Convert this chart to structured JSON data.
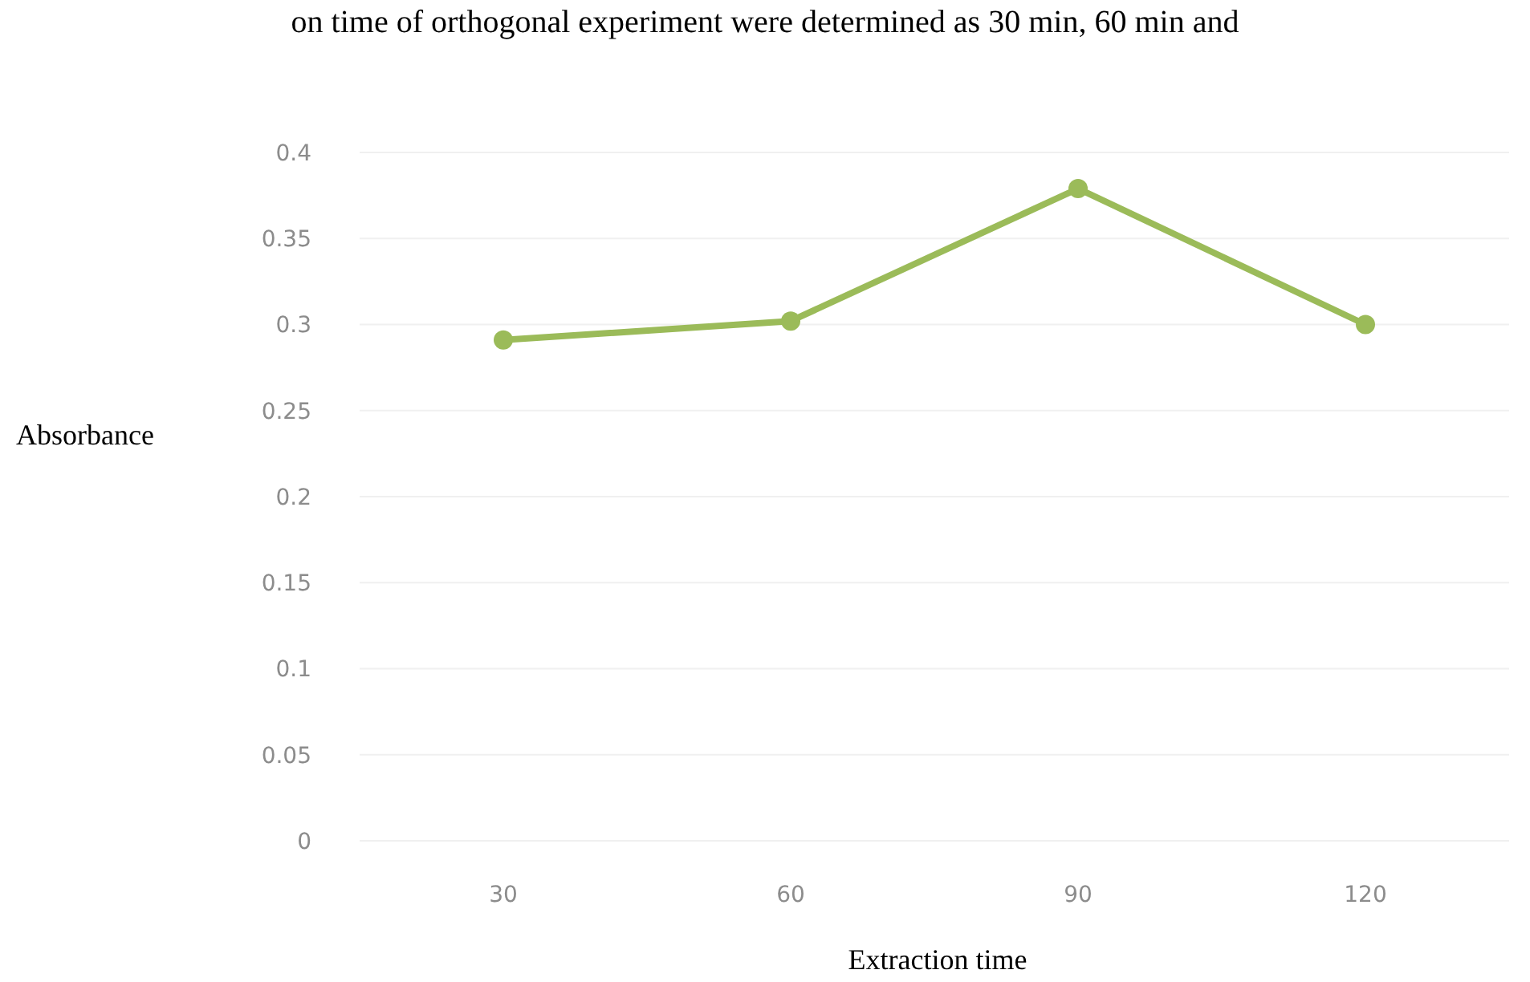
{
  "chart_data": {
    "type": "line",
    "xlabel": "Extraction time",
    "ylabel": "Absorbance",
    "annotations": [
      "on time of orthogonal experiment were determined as 30 min, 60 min and"
    ],
    "categories": [
      "30",
      "60",
      "90",
      "120"
    ],
    "series": [
      {
        "color": "#9bbb59",
        "values": [
          0.291,
          0.302,
          0.379,
          0.3
        ]
      }
    ],
    "ylim": [
      0,
      0.4
    ],
    "yticks": [
      0,
      0.05,
      0.1,
      0.15,
      0.2,
      0.25,
      0.3,
      0.35,
      0.4
    ],
    "grid": "y",
    "marker": "circle",
    "line_style": "solid"
  }
}
